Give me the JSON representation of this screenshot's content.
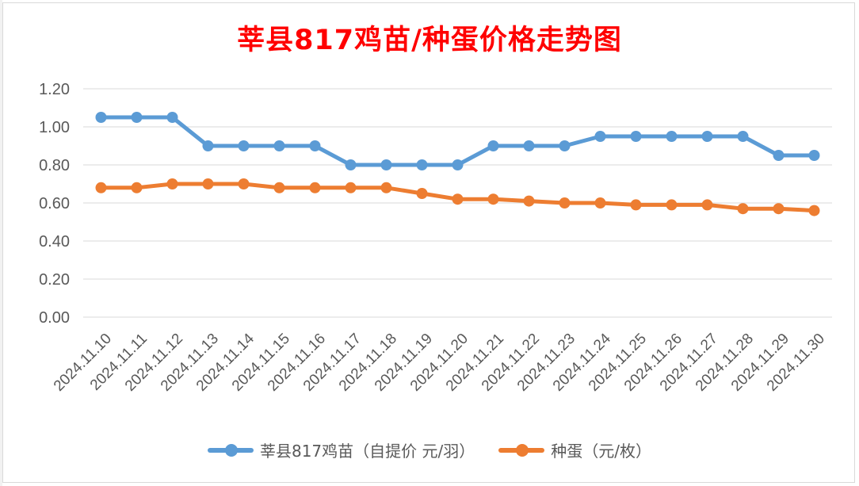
{
  "chart_data": {
    "type": "line",
    "title": "莘县817鸡苗/种蛋价格走势图",
    "categories": [
      "2024.11.10",
      "2024.11.11",
      "2024.11.12",
      "2024.11.13",
      "2024.11.14",
      "2024.11.15",
      "2024.11.16",
      "2024.11.17",
      "2024.11.18",
      "2024.11.19",
      "2024.11.20",
      "2024.11.21",
      "2024.11.22",
      "2024.11.23",
      "2024.11.24",
      "2024.11.25",
      "2024.11.26",
      "2024.11.27",
      "2024.11.28",
      "2024.11.29",
      "2024.11.30"
    ],
    "y_ticks": [
      "0.00",
      "0.20",
      "0.40",
      "0.60",
      "0.80",
      "1.00",
      "1.20"
    ],
    "ylim": [
      0,
      1.2
    ],
    "grid": true,
    "legend_position": "bottom",
    "series": [
      {
        "name": "莘县817鸡苗（自提价 元/羽）",
        "color": "#5b9bd5",
        "values": [
          1.05,
          1.05,
          1.05,
          0.9,
          0.9,
          0.9,
          0.9,
          0.8,
          0.8,
          0.8,
          0.8,
          0.9,
          0.9,
          0.9,
          0.95,
          0.95,
          0.95,
          0.95,
          0.95,
          0.85,
          0.85
        ]
      },
      {
        "name": "种蛋（元/枚）",
        "color": "#ed7d31",
        "values": [
          0.68,
          0.68,
          0.7,
          0.7,
          0.7,
          0.68,
          0.68,
          0.68,
          0.68,
          0.65,
          0.62,
          0.62,
          0.61,
          0.6,
          0.6,
          0.59,
          0.59,
          0.59,
          0.57,
          0.57,
          0.56
        ]
      }
    ]
  }
}
